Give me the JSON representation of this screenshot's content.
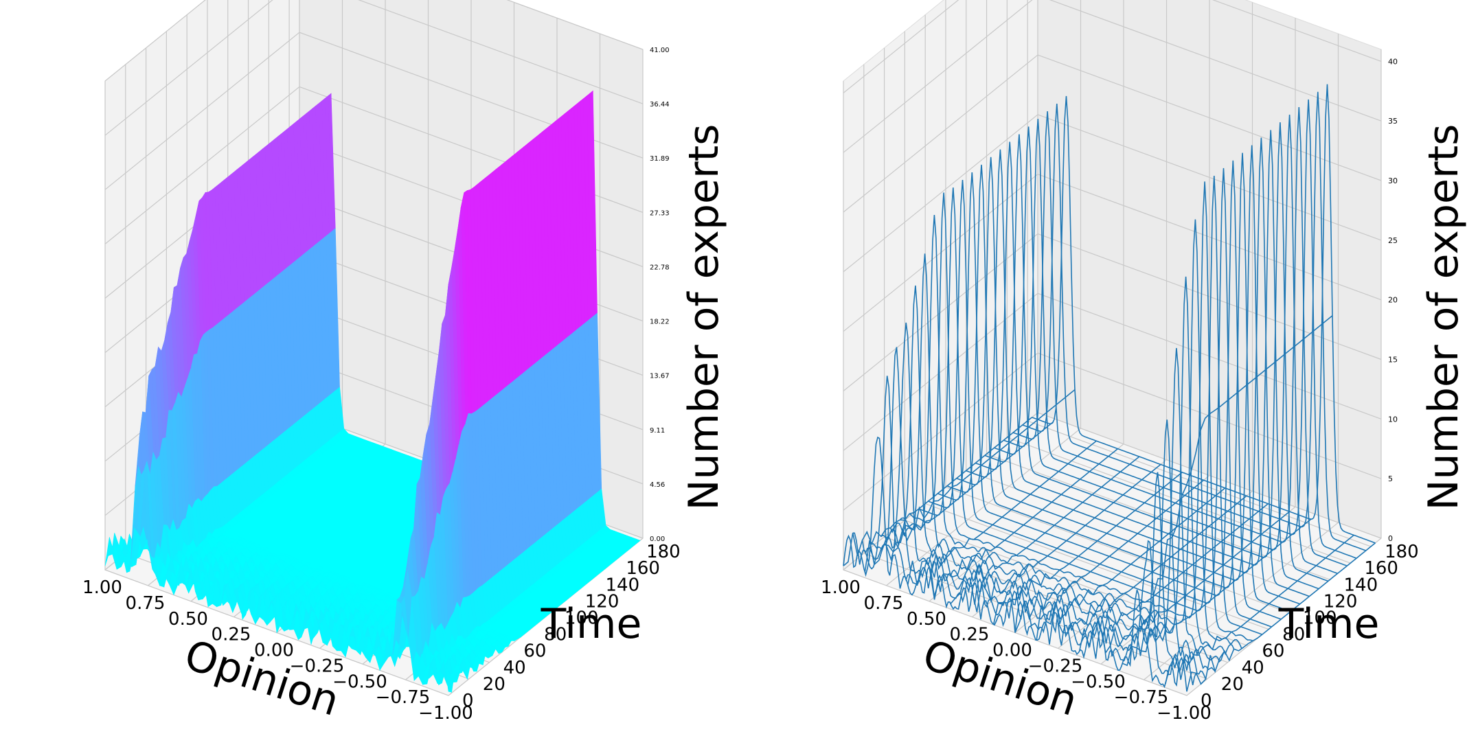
{
  "chart_data": [
    {
      "type": "surface3d",
      "xlabel": "Opinion",
      "ylabel": "Time",
      "zlabel": "Number of experts",
      "x_ticks": [
        "1.00",
        "0.75",
        "0.50",
        "0.25",
        "0.00",
        "−0.25",
        "−0.50",
        "−0.75",
        "−1.00"
      ],
      "y_ticks": [
        "0",
        "20",
        "40",
        "60",
        "80",
        "100",
        "120",
        "140",
        "160",
        "180"
      ],
      "z_ticks": [
        "0.00",
        "4.56",
        "9.11",
        "13.67",
        "18.22",
        "22.78",
        "27.33",
        "31.89",
        "36.44",
        "41.00"
      ],
      "xlim": [
        1.0,
        -1.0
      ],
      "ylim": [
        0,
        190
      ],
      "zlim": [
        0,
        41
      ],
      "colormap": "cool",
      "colormap_low": "#00ffff",
      "colormap_high": "#ff00ff",
      "pane_color": "#f2f2f2",
      "grid": true,
      "clusters": [
        {
          "opinion": 0.8,
          "peak_experts": 28,
          "early_experts": 12
        },
        {
          "opinion": -0.72,
          "peak_experts": 37,
          "early_experts": 5
        }
      ]
    },
    {
      "type": "wireframe3d",
      "xlabel": "Opinion",
      "ylabel": "Time",
      "zlabel": "Number of experts",
      "x_ticks": [
        "1.00",
        "0.75",
        "0.50",
        "0.25",
        "0.00",
        "−0.25",
        "−0.50",
        "−0.75",
        "−1.00"
      ],
      "y_ticks": [
        "0",
        "20",
        "40",
        "60",
        "80",
        "100",
        "120",
        "140",
        "160",
        "180"
      ],
      "z_ticks": [
        "0",
        "5",
        "10",
        "15",
        "20",
        "25",
        "30",
        "35",
        "40"
      ],
      "xlim": [
        1.0,
        -1.0
      ],
      "ylim": [
        0,
        190
      ],
      "zlim": [
        0,
        41
      ],
      "line_color": "#1f77b4",
      "pane_color": "#f2f2f2",
      "grid": true,
      "clusters": [
        {
          "opinion": 0.8,
          "peak_experts": 28,
          "early_experts": 12
        },
        {
          "opinion": -0.72,
          "peak_experts": 37,
          "early_experts": 5
        }
      ]
    }
  ]
}
